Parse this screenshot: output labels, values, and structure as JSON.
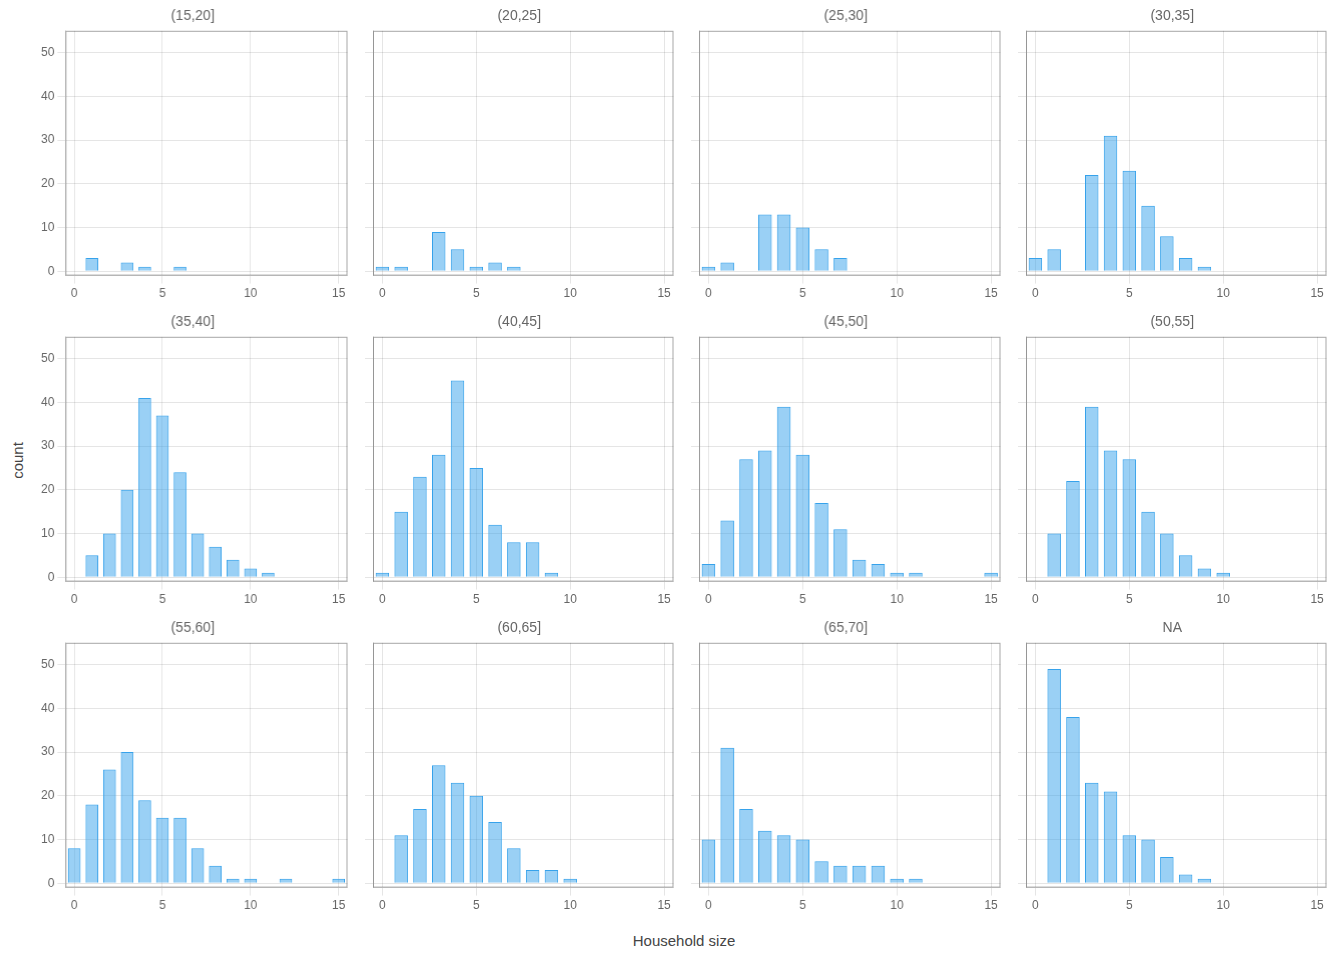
{
  "xlabel": "Household size",
  "ylabel": "count",
  "chart_data": [
    {
      "type": "bar",
      "title": "(15,20]",
      "x": [
        0,
        1,
        2,
        3,
        4,
        5,
        6,
        7,
        8,
        9,
        10,
        11,
        12,
        13,
        14,
        15
      ],
      "values": [
        0,
        3,
        0,
        2,
        1,
        0,
        1,
        0,
        0,
        0,
        0,
        0,
        0,
        0,
        0,
        0
      ],
      "xlim": [
        -0.5,
        15.5
      ],
      "xticks": [
        0,
        5,
        10,
        15
      ],
      "ylim": [
        -1,
        55
      ],
      "yticks": [
        0,
        10,
        20,
        30,
        40,
        50
      ],
      "grid": true
    },
    {
      "type": "bar",
      "title": "(20,25]",
      "x": [
        0,
        1,
        2,
        3,
        4,
        5,
        6,
        7,
        8,
        9,
        10,
        11,
        12,
        13,
        14,
        15
      ],
      "values": [
        1,
        1,
        0,
        9,
        5,
        1,
        2,
        1,
        0,
        0,
        0,
        0,
        0,
        0,
        0,
        0
      ],
      "xlim": [
        -0.5,
        15.5
      ],
      "xticks": [
        0,
        5,
        10,
        15
      ],
      "ylim": [
        -1,
        55
      ],
      "yticks": [
        0,
        10,
        20,
        30,
        40,
        50
      ],
      "grid": true,
      "tick_labels": "x"
    },
    {
      "type": "bar",
      "title": "(25,30]",
      "x": [
        0,
        1,
        2,
        3,
        4,
        5,
        6,
        7,
        8,
        9,
        10,
        11,
        12,
        13,
        14,
        15
      ],
      "values": [
        1,
        2,
        0,
        13,
        13,
        10,
        5,
        3,
        0,
        0,
        0,
        0,
        0,
        0,
        0,
        0
      ],
      "xlim": [
        -0.5,
        15.5
      ],
      "xticks": [
        0,
        5,
        10,
        15
      ],
      "ylim": [
        -1,
        55
      ],
      "yticks": [
        0,
        10,
        20,
        30,
        40,
        50
      ],
      "grid": true,
      "tick_labels": "x"
    },
    {
      "type": "bar",
      "title": "(30,35]",
      "x": [
        0,
        1,
        2,
        3,
        4,
        5,
        6,
        7,
        8,
        9,
        10,
        11,
        12,
        13,
        14,
        15
      ],
      "values": [
        3,
        5,
        0,
        22,
        31,
        23,
        15,
        8,
        3,
        1,
        0,
        0,
        0,
        0,
        0,
        0
      ],
      "xlim": [
        -0.5,
        15.5
      ],
      "xticks": [
        0,
        5,
        10,
        15
      ],
      "ylim": [
        -1,
        55
      ],
      "yticks": [
        0,
        10,
        20,
        30,
        40,
        50
      ],
      "grid": true,
      "tick_labels": "x"
    },
    {
      "type": "bar",
      "title": "(35,40]",
      "x": [
        0,
        1,
        2,
        3,
        4,
        5,
        6,
        7,
        8,
        9,
        10,
        11,
        12,
        13,
        14,
        15
      ],
      "values": [
        0,
        5,
        10,
        20,
        41,
        37,
        24,
        10,
        7,
        4,
        2,
        1,
        0,
        0,
        0,
        0
      ],
      "xlim": [
        -0.5,
        15.5
      ],
      "xticks": [
        0,
        5,
        10,
        15
      ],
      "ylim": [
        -1,
        55
      ],
      "yticks": [
        0,
        10,
        20,
        30,
        40,
        50
      ],
      "grid": true
    },
    {
      "type": "bar",
      "title": "(40,45]",
      "x": [
        0,
        1,
        2,
        3,
        4,
        5,
        6,
        7,
        8,
        9,
        10,
        11,
        12,
        13,
        14,
        15
      ],
      "values": [
        1,
        15,
        23,
        28,
        45,
        25,
        12,
        8,
        8,
        1,
        0,
        0,
        0,
        0,
        0,
        0
      ],
      "xlim": [
        -0.5,
        15.5
      ],
      "xticks": [
        0,
        5,
        10,
        15
      ],
      "ylim": [
        -1,
        55
      ],
      "yticks": [
        0,
        10,
        20,
        30,
        40,
        50
      ],
      "grid": true,
      "tick_labels": "x"
    },
    {
      "type": "bar",
      "title": "(45,50]",
      "x": [
        0,
        1,
        2,
        3,
        4,
        5,
        6,
        7,
        8,
        9,
        10,
        11,
        12,
        13,
        14,
        15
      ],
      "values": [
        3,
        13,
        27,
        29,
        39,
        28,
        17,
        11,
        4,
        3,
        1,
        1,
        0,
        0,
        0,
        1
      ],
      "xlim": [
        -0.5,
        15.5
      ],
      "xticks": [
        0,
        5,
        10,
        15
      ],
      "ylim": [
        -1,
        55
      ],
      "yticks": [
        0,
        10,
        20,
        30,
        40,
        50
      ],
      "grid": true,
      "tick_labels": "x"
    },
    {
      "type": "bar",
      "title": "(50,55]",
      "x": [
        0,
        1,
        2,
        3,
        4,
        5,
        6,
        7,
        8,
        9,
        10,
        11,
        12,
        13,
        14,
        15
      ],
      "values": [
        0,
        10,
        22,
        39,
        29,
        27,
        15,
        10,
        5,
        2,
        1,
        0,
        0,
        0,
        0,
        0
      ],
      "xlim": [
        -0.5,
        15.5
      ],
      "xticks": [
        0,
        5,
        10,
        15
      ],
      "ylim": [
        -1,
        55
      ],
      "yticks": [
        0,
        10,
        20,
        30,
        40,
        50
      ],
      "grid": true,
      "tick_labels": "x"
    },
    {
      "type": "bar",
      "title": "(55,60]",
      "x": [
        0,
        1,
        2,
        3,
        4,
        5,
        6,
        7,
        8,
        9,
        10,
        11,
        12,
        13,
        14,
        15
      ],
      "values": [
        8,
        18,
        26,
        30,
        19,
        15,
        15,
        8,
        4,
        1,
        1,
        0,
        1,
        0,
        0,
        1
      ],
      "xlim": [
        -0.5,
        15.5
      ],
      "xticks": [
        0,
        5,
        10,
        15
      ],
      "ylim": [
        -1,
        55
      ],
      "yticks": [
        0,
        10,
        20,
        30,
        40,
        50
      ],
      "grid": true
    },
    {
      "type": "bar",
      "title": "(60,65]",
      "x": [
        0,
        1,
        2,
        3,
        4,
        5,
        6,
        7,
        8,
        9,
        10,
        11,
        12,
        13,
        14,
        15
      ],
      "values": [
        0,
        11,
        17,
        27,
        23,
        20,
        14,
        8,
        3,
        3,
        1,
        0,
        0,
        0,
        0,
        0
      ],
      "xlim": [
        -0.5,
        15.5
      ],
      "xticks": [
        0,
        5,
        10,
        15
      ],
      "ylim": [
        -1,
        55
      ],
      "yticks": [
        0,
        10,
        20,
        30,
        40,
        50
      ],
      "grid": true,
      "tick_labels": "x"
    },
    {
      "type": "bar",
      "title": "(65,70]",
      "x": [
        0,
        1,
        2,
        3,
        4,
        5,
        6,
        7,
        8,
        9,
        10,
        11,
        12,
        13,
        14,
        15
      ],
      "values": [
        10,
        31,
        17,
        12,
        11,
        10,
        5,
        4,
        4,
        4,
        1,
        1,
        0,
        0,
        0,
        0
      ],
      "xlim": [
        -0.5,
        15.5
      ],
      "xticks": [
        0,
        5,
        10,
        15
      ],
      "ylim": [
        -1,
        55
      ],
      "yticks": [
        0,
        10,
        20,
        30,
        40,
        50
      ],
      "grid": true,
      "tick_labels": "x"
    },
    {
      "type": "bar",
      "title": "NA",
      "x": [
        0,
        1,
        2,
        3,
        4,
        5,
        6,
        7,
        8,
        9,
        10,
        11,
        12,
        13,
        14,
        15
      ],
      "values": [
        0,
        49,
        38,
        23,
        21,
        11,
        10,
        6,
        2,
        1,
        0,
        0,
        0,
        0,
        0,
        0
      ],
      "xlim": [
        -0.5,
        15.5
      ],
      "xticks": [
        0,
        5,
        10,
        15
      ],
      "ylim": [
        -1,
        55
      ],
      "yticks": [
        0,
        10,
        20,
        30,
        40,
        50
      ],
      "grid": true,
      "tick_labels": "x"
    }
  ]
}
